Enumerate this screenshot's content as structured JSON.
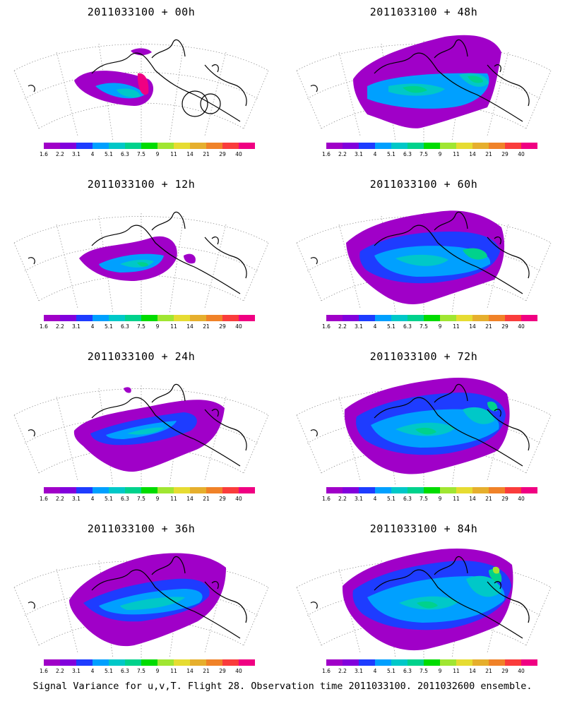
{
  "colorbar": {
    "colors": [
      "#a000c8",
      "#8200dc",
      "#1e3cff",
      "#00a0ff",
      "#00c8c8",
      "#00d28c",
      "#00dc00",
      "#a0e632",
      "#e6dc32",
      "#e6af2d",
      "#f08228",
      "#fa3c3c",
      "#f00082"
    ],
    "tick_labels": [
      "1.6",
      "2.2",
      "3.1",
      "4",
      "5.1",
      "6.3",
      "7.5",
      "9",
      "11",
      "14",
      "21",
      "29",
      "40"
    ]
  },
  "panels": [
    {
      "title": "2011033100 + 00h"
    },
    {
      "title": "2011033100 + 48h"
    },
    {
      "title": "2011033100 + 12h"
    },
    {
      "title": "2011033100 + 60h"
    },
    {
      "title": "2011033100 + 24h"
    },
    {
      "title": "2011033100 + 72h"
    },
    {
      "title": "2011033100 + 36h"
    },
    {
      "title": "2011033100 + 84h"
    }
  ],
  "footer": "Signal Variance for u,v,T. Flight 28. Observation time 2011033100. 2011032600 ensemble."
}
